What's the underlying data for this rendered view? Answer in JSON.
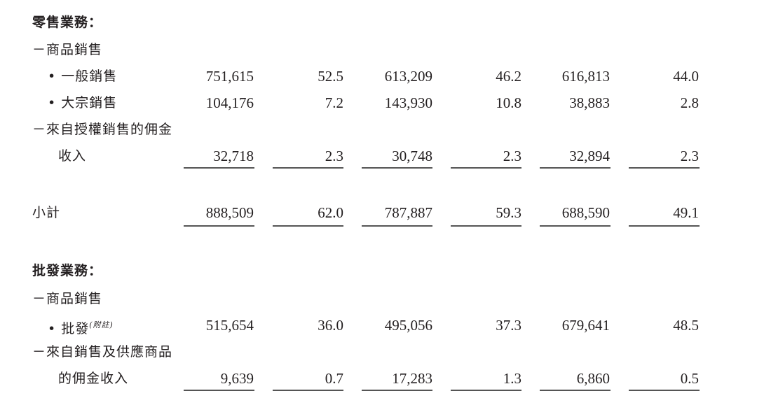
{
  "retail": {
    "heading": "零售業務：",
    "goods_sales": "－商品銷售",
    "general_sales": {
      "label": "• 一般銷售",
      "values": [
        "751,615",
        "52.5",
        "613,209",
        "46.2",
        "616,813",
        "44.0"
      ]
    },
    "bulk_sales": {
      "label": "• 大宗銷售",
      "values": [
        "104,176",
        "7.2",
        "143,930",
        "10.8",
        "38,883",
        "2.8"
      ]
    },
    "commission_line1": "－來自授權銷售的佣金",
    "commission": {
      "label": "收入",
      "values": [
        "32,718",
        "2.3",
        "30,748",
        "2.3",
        "32,894",
        "2.3"
      ]
    },
    "subtotal": {
      "label": "小計",
      "values": [
        "888,509",
        "62.0",
        "787,887",
        "59.3",
        "688,590",
        "49.1"
      ]
    }
  },
  "wholesale": {
    "heading": "批發業務：",
    "goods_sales": "－商品銷售",
    "wholesale_sales": {
      "label": "• 批發",
      "note": "(附註)",
      "values": [
        "515,654",
        "36.0",
        "495,056",
        "37.3",
        "679,641",
        "48.5"
      ]
    },
    "commission_line1": "－來自銷售及供應商品",
    "commission": {
      "label": "的佣金收入",
      "values": [
        "9,639",
        "0.7",
        "17,283",
        "1.3",
        "6,860",
        "0.5"
      ]
    }
  }
}
